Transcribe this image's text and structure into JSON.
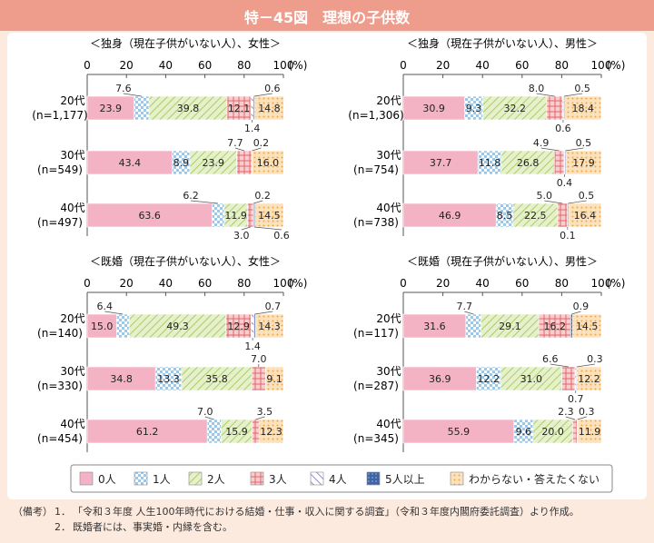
{
  "figure_title": "特－45図　理想の子供数",
  "notes": {
    "prefix": "（備考）",
    "items": [
      {
        "num": "1．",
        "text": "「令和３年度 人生100年時代における結婚・仕事・収入に関する調査」（令和３年度内閣府委託調査）より作成。"
      },
      {
        "num": "2．",
        "text": "既婚者には、事実婚・内縁を含む。"
      }
    ]
  },
  "colors": {
    "0人": "#f4b3c4",
    "1人": "#9bc7e8",
    "2人": "#cde3a0",
    "3人": "#f2a3a6",
    "4人": "#c9b8dc",
    "5人以上": "#3f64a6",
    "わからない・答えたくない": "#f7c882"
  },
  "chart_data": [
    {
      "type": "bar",
      "orientation": "horizontal-stacked-100",
      "title": "＜独身（現在子供がいない人）、女性＞",
      "x_ticks": [
        "0",
        "20",
        "40",
        "60",
        "80",
        "100"
      ],
      "unit": "(%)",
      "xlim": [
        0,
        100
      ],
      "categories": [
        "20代",
        "30代",
        "40代"
      ],
      "category_n": [
        "(n=1,177)",
        "(n=549)",
        "(n=497)"
      ],
      "series_names": [
        "0人",
        "1人",
        "2人",
        "3人",
        "4人",
        "5人以上",
        "わからない・答えたくない"
      ],
      "values": [
        [
          23.9,
          7.6,
          39.8,
          12.1,
          1.4,
          0.6,
          14.8
        ],
        [
          43.4,
          8.9,
          23.9,
          7.7,
          0.2,
          0.0,
          16.0
        ],
        [
          63.6,
          6.2,
          11.9,
          3.0,
          0.2,
          0.6,
          14.5
        ]
      ]
    },
    {
      "type": "bar",
      "orientation": "horizontal-stacked-100",
      "title": "＜独身（現在子供がいない人）、男性＞",
      "x_ticks": [
        "0",
        "20",
        "40",
        "60",
        "80",
        "100"
      ],
      "unit": "(%)",
      "xlim": [
        0,
        100
      ],
      "categories": [
        "20代",
        "30代",
        "40代"
      ],
      "category_n": [
        "(n=1,306)",
        "(n=754)",
        "(n=738)"
      ],
      "series_names": [
        "0人",
        "1人",
        "2人",
        "3人",
        "4人",
        "5人以上",
        "わからない・答えたくない"
      ],
      "values": [
        [
          30.9,
          9.3,
          32.2,
          8.0,
          0.6,
          0.5,
          18.4
        ],
        [
          37.7,
          11.8,
          26.8,
          4.9,
          0.4,
          0.5,
          17.9
        ],
        [
          46.9,
          8.5,
          22.5,
          5.0,
          0.1,
          0.5,
          16.4
        ]
      ]
    },
    {
      "type": "bar",
      "orientation": "horizontal-stacked-100",
      "title": "＜既婚（現在子供がいない人）、女性＞",
      "x_ticks": [
        "0",
        "20",
        "40",
        "60",
        "80",
        "100"
      ],
      "unit": "(%)",
      "xlim": [
        0,
        100
      ],
      "categories": [
        "20代",
        "30代",
        "40代"
      ],
      "category_n": [
        "(n=140)",
        "(n=330)",
        "(n=454)"
      ],
      "series_names": [
        "0人",
        "1人",
        "2人",
        "3人",
        "4人",
        "5人以上",
        "わからない・答えたくない"
      ],
      "values": [
        [
          15.0,
          6.4,
          49.3,
          12.9,
          1.4,
          0.7,
          14.3
        ],
        [
          34.8,
          13.3,
          35.8,
          7.0,
          0.0,
          0.0,
          9.1
        ],
        [
          61.2,
          7.0,
          15.9,
          3.5,
          0.0,
          0.0,
          12.3
        ]
      ]
    },
    {
      "type": "bar",
      "orientation": "horizontal-stacked-100",
      "title": "＜既婚（現在子供がいない人）、男性＞",
      "x_ticks": [
        "0",
        "20",
        "40",
        "60",
        "80",
        "100"
      ],
      "unit": "(%)",
      "xlim": [
        0,
        100
      ],
      "categories": [
        "20代",
        "30代",
        "40代"
      ],
      "category_n": [
        "(n=117)",
        "(n=287)",
        "(n=345)"
      ],
      "series_names": [
        "0人",
        "1人",
        "2人",
        "3人",
        "4人",
        "5人以上",
        "わからない・答えたくない"
      ],
      "values": [
        [
          31.6,
          7.7,
          29.1,
          16.2,
          0.0,
          0.9,
          14.5
        ],
        [
          36.9,
          12.2,
          31.0,
          6.6,
          0.7,
          0.3,
          12.2
        ],
        [
          55.9,
          9.6,
          20.0,
          2.3,
          0.3,
          0.0,
          11.9
        ]
      ]
    }
  ],
  "legend": {
    "entries": [
      "0人",
      "1人",
      "2人",
      "3人",
      "4人",
      "5人以上",
      "わからない・答えたくない"
    ]
  }
}
